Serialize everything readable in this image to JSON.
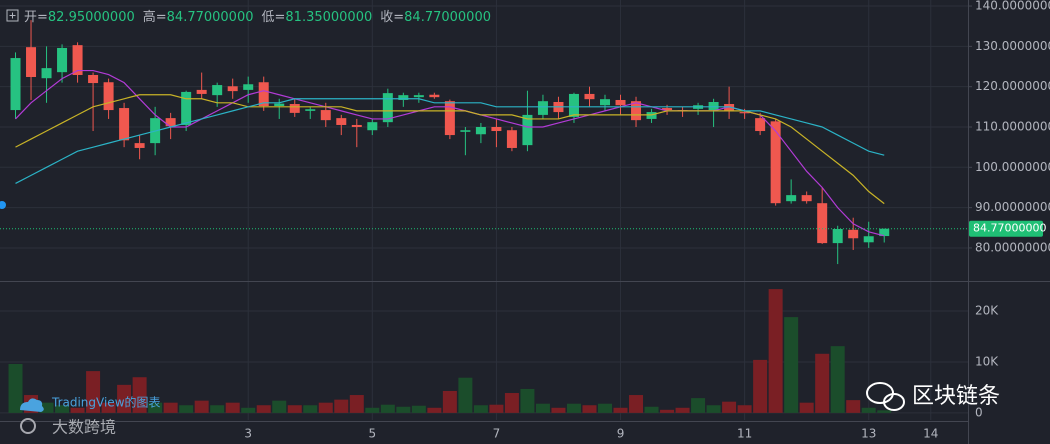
{
  "header": {
    "items": [
      {
        "label": "开=",
        "value": "82.95000000"
      },
      {
        "label": "高=",
        "value": "84.77000000"
      },
      {
        "label": "低=",
        "value": "81.35000000"
      },
      {
        "label": "收=",
        "value": "84.77000000"
      }
    ]
  },
  "watermarks": {
    "brand": "TradingView的图表",
    "site": "大数跨境",
    "channel": "区块链条"
  },
  "chart_data": [
    {
      "type": "candlestick",
      "up_color": "#26c281",
      "down_color": "#f0584f",
      "x": [
        -0.75,
        -0.5,
        -0.25,
        0,
        0.25,
        0.5,
        0.75,
        1,
        1.25,
        1.5,
        1.75,
        2,
        2.25,
        2.5,
        2.75,
        3,
        3.25,
        3.5,
        3.75,
        4,
        4.25,
        4.5,
        4.75,
        5,
        5.25,
        5.5,
        5.75,
        6,
        6.25,
        6.5,
        6.75,
        7,
        7.25,
        7.5,
        7.75,
        8,
        8.25,
        8.5,
        8.75,
        9,
        9.25,
        9.5,
        9.75,
        10,
        10.25,
        10.5,
        10.75,
        11,
        11.25,
        11.5,
        11.75,
        12,
        12.25,
        12.5,
        12.75,
        13,
        13.25
      ],
      "open": [
        114.2,
        129.8,
        122.1,
        123.6,
        130.3,
        122.9,
        121.1,
        114.7,
        106,
        106,
        112.2,
        110.5,
        119.2,
        117.9,
        120.1,
        119.2,
        121.1,
        115.2,
        115.7,
        114,
        114.2,
        112.2,
        110.5,
        109.2,
        111.2,
        116.7,
        117.4,
        118,
        116.4,
        108.8,
        108.2,
        110,
        109.2,
        105.5,
        113,
        116.2,
        112.5,
        118.2,
        115.4,
        116.7,
        116.4,
        112,
        114.7,
        114.2,
        114.5,
        114.2,
        115.7,
        113.7,
        112.2,
        111.4,
        91.6,
        93.1,
        91.1,
        81.2,
        84.5,
        81.4,
        82.95
      ],
      "high": [
        128.5,
        136.5,
        130,
        130.5,
        131,
        123.5,
        122,
        116,
        108,
        115,
        113.5,
        119,
        123.5,
        121,
        122,
        122.5,
        122.5,
        117,
        117,
        115,
        116,
        113,
        112,
        112,
        119.5,
        118.5,
        118.5,
        118.5,
        116.8,
        110,
        111,
        112,
        110,
        119,
        118,
        117.5,
        118.5,
        120,
        118,
        118,
        117.5,
        114.5,
        115.5,
        115,
        116,
        117,
        120,
        114.5,
        113.5,
        112,
        97,
        94,
        95,
        85.5,
        87.5,
        86.5,
        84.77
      ],
      "low": [
        112,
        116.7,
        116,
        121,
        121,
        109,
        112,
        105,
        102,
        103,
        107,
        109,
        117,
        115,
        117,
        116,
        114,
        112,
        112.5,
        112,
        110,
        108,
        105,
        108,
        110,
        115,
        116,
        117,
        107,
        103,
        106,
        105,
        104,
        104,
        112,
        112,
        111,
        115,
        114,
        113,
        110,
        111,
        113,
        112.5,
        113,
        110,
        112,
        112,
        108,
        90.5,
        91,
        91,
        81,
        76,
        79.5,
        80,
        81.35
      ],
      "close": [
        127.1,
        122.4,
        124.6,
        129.6,
        122.9,
        120.9,
        114.2,
        106.7,
        104.8,
        112.2,
        110.2,
        118.7,
        118.2,
        120.4,
        118.9,
        120.6,
        115.2,
        115.8,
        113.5,
        114.4,
        111.7,
        110.5,
        110,
        111.2,
        118.4,
        117.9,
        117.9,
        117.4,
        108,
        109.2,
        110,
        109,
        104.8,
        113,
        116.4,
        113.7,
        118.2,
        116.9,
        116.9,
        115.4,
        111.7,
        113.7,
        114.2,
        114,
        115.4,
        116.2,
        113.9,
        113.4,
        109,
        91.1,
        93.1,
        91.6,
        81.2,
        84.7,
        82.4,
        82.9,
        84.77
      ],
      "moving_averages": [
        {
          "color": "#b23bd6",
          "values": [
            112,
            116,
            119,
            122,
            124,
            124,
            123,
            121,
            117,
            113,
            110,
            110,
            112,
            114,
            116,
            118,
            119,
            118,
            117,
            116,
            115,
            114,
            113,
            112,
            112,
            113,
            114,
            115,
            115,
            114,
            113,
            112,
            111,
            110,
            110,
            111,
            112,
            113,
            114,
            115,
            116,
            115,
            114,
            114,
            114,
            114,
            115,
            114,
            113,
            109,
            104,
            99,
            95,
            90,
            86,
            84,
            83
          ]
        },
        {
          "color": "#c8b327",
          "values": [
            105,
            107,
            109,
            111,
            113,
            115,
            116,
            117,
            118,
            118,
            118,
            117,
            117,
            116,
            116,
            115,
            115,
            115,
            115,
            115,
            115,
            115,
            114,
            114,
            114,
            114,
            114,
            114,
            114,
            114,
            113,
            113,
            113,
            112,
            112,
            112,
            113,
            113,
            113,
            113,
            113,
            113,
            114,
            114,
            114,
            114,
            114,
            114,
            113,
            112,
            110,
            107,
            104,
            101,
            98,
            94,
            91
          ]
        },
        {
          "color": "#2bb3c6",
          "values": [
            96,
            98,
            100,
            102,
            104,
            105,
            106,
            107,
            108,
            109,
            110,
            111,
            112,
            113,
            114,
            115,
            116,
            116,
            117,
            117,
            117,
            117,
            117,
            117,
            117,
            117,
            117,
            116,
            116,
            116,
            116,
            115,
            115,
            115,
            115,
            115,
            115,
            115,
            115,
            115,
            115,
            115,
            115,
            115,
            115,
            115,
            115,
            114,
            114,
            113,
            112,
            111,
            110,
            108,
            106,
            104,
            103
          ]
        }
      ],
      "last_price": {
        "value": 84.77,
        "label": "84.77000000",
        "color": "#1fbf75"
      },
      "xlim": [
        -1,
        14.6
      ],
      "xticks": [
        3,
        5,
        7,
        9,
        11,
        13,
        14
      ],
      "ylim": [
        71.8,
        141.5
      ],
      "yticks": [
        {
          "value": 140,
          "label": "140.0000000"
        },
        {
          "value": 130,
          "label": "130.0000000"
        },
        {
          "value": 120,
          "label": "120.0000000"
        },
        {
          "value": 110,
          "label": "110.0000000"
        },
        {
          "value": 100,
          "label": "100.0000000"
        },
        {
          "value": 90,
          "label": "90.00000000"
        },
        {
          "value": 80,
          "label": "80.00000000"
        }
      ],
      "grid": true
    },
    {
      "type": "bar",
      "up_color": "#1b4d2b",
      "down_color": "#7a1f24",
      "values": [
        9600,
        3500,
        2000,
        1500,
        1000,
        8200,
        2000,
        5500,
        7000,
        2000,
        2000,
        1500,
        2400,
        1500,
        2000,
        1000,
        1500,
        2400,
        1500,
        1500,
        2000,
        2600,
        3500,
        1000,
        1600,
        1200,
        1400,
        1000,
        4300,
        6900,
        1500,
        1600,
        3900,
        4700,
        1800,
        1000,
        1800,
        1500,
        1800,
        1000,
        3500,
        1200,
        600,
        1000,
        2900,
        1500,
        2200,
        1500,
        10400,
        24300,
        18800,
        2000,
        11600,
        13100,
        2500,
        1000,
        500
      ],
      "ylim": [
        -1400,
        25500
      ],
      "yticks": [
        {
          "value": 20000,
          "label": "20K"
        },
        {
          "value": 10000,
          "label": "10K"
        },
        0
      ]
    }
  ]
}
